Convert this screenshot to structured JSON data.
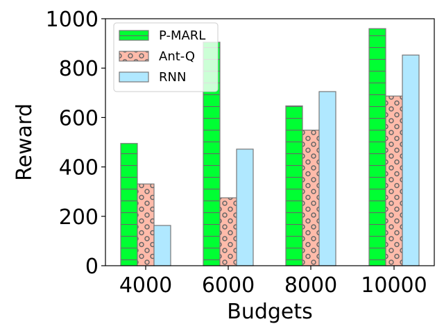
{
  "chart_data": {
    "type": "bar",
    "title": "",
    "xlabel": "Budgets",
    "ylabel": "Reward",
    "categories": [
      "4000",
      "6000",
      "8000",
      "10000"
    ],
    "ylim": [
      0,
      1000
    ],
    "yticks": [
      0,
      200,
      400,
      600,
      800,
      1000
    ],
    "grid": false,
    "legend_position": "top-left",
    "series": [
      {
        "name": "P-MARL",
        "values": [
          495,
          905,
          647,
          960
        ],
        "color": "#00ff33",
        "hatch": "horizontal-lines"
      },
      {
        "name": "Ant-Q",
        "values": [
          331,
          275,
          549,
          687
        ],
        "color": "#ffbbaa",
        "hatch": "circles"
      },
      {
        "name": "RNN",
        "values": [
          163,
          472,
          705,
          853
        ],
        "color": "#b0e8ff",
        "hatch": "none"
      }
    ]
  }
}
